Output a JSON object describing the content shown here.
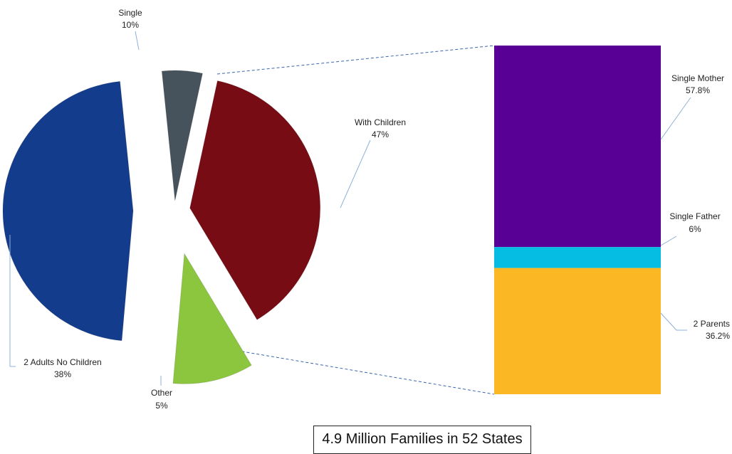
{
  "chart_data": [
    {
      "type": "pie",
      "slices": [
        {
          "label": "With Children",
          "percent": "47%",
          "value": 47,
          "color": "#143c8c"
        },
        {
          "label": "Other",
          "percent": "5%",
          "value": 5,
          "color": "#46535c"
        },
        {
          "label": "2 Adults No Children",
          "percent": "38%",
          "value": 38,
          "color": "#780c14"
        },
        {
          "label": "Single",
          "percent": "10%",
          "value": 10,
          "color": "#8cc63e"
        }
      ]
    },
    {
      "type": "bar",
      "stacked": true,
      "breakdown_of": "With Children",
      "segments": [
        {
          "label": "Single Mother",
          "percent": "57.8%",
          "value": 57.8,
          "color": "#580096"
        },
        {
          "label": "Single Father",
          "percent": "6%",
          "value": 6,
          "color": "#05bce3"
        },
        {
          "label": "2 Parents",
          "percent": "36.2%",
          "value": 36.2,
          "color": "#fbb724"
        }
      ]
    }
  ],
  "caption": "4.9 Million Families in 52 States"
}
